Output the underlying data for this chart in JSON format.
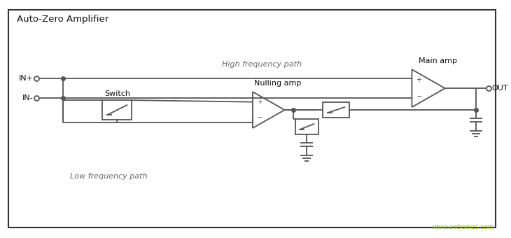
{
  "title": "Auto-Zero Amplifier",
  "bg_color": "#ffffff",
  "line_color": "#555555",
  "text_color": "#111111",
  "italic_color": "#666666",
  "watermark": "www.entronics.com",
  "watermark_color": "#88bb00",
  "lw": 1.3,
  "in_plus": "IN+",
  "in_minus": "IN-",
  "out": "OUT",
  "high_freq": "High frequency path",
  "low_freq": "Low frequency path",
  "switch_label": "Switch",
  "nulling_label": "Nulling amp",
  "main_label": "Main amp"
}
